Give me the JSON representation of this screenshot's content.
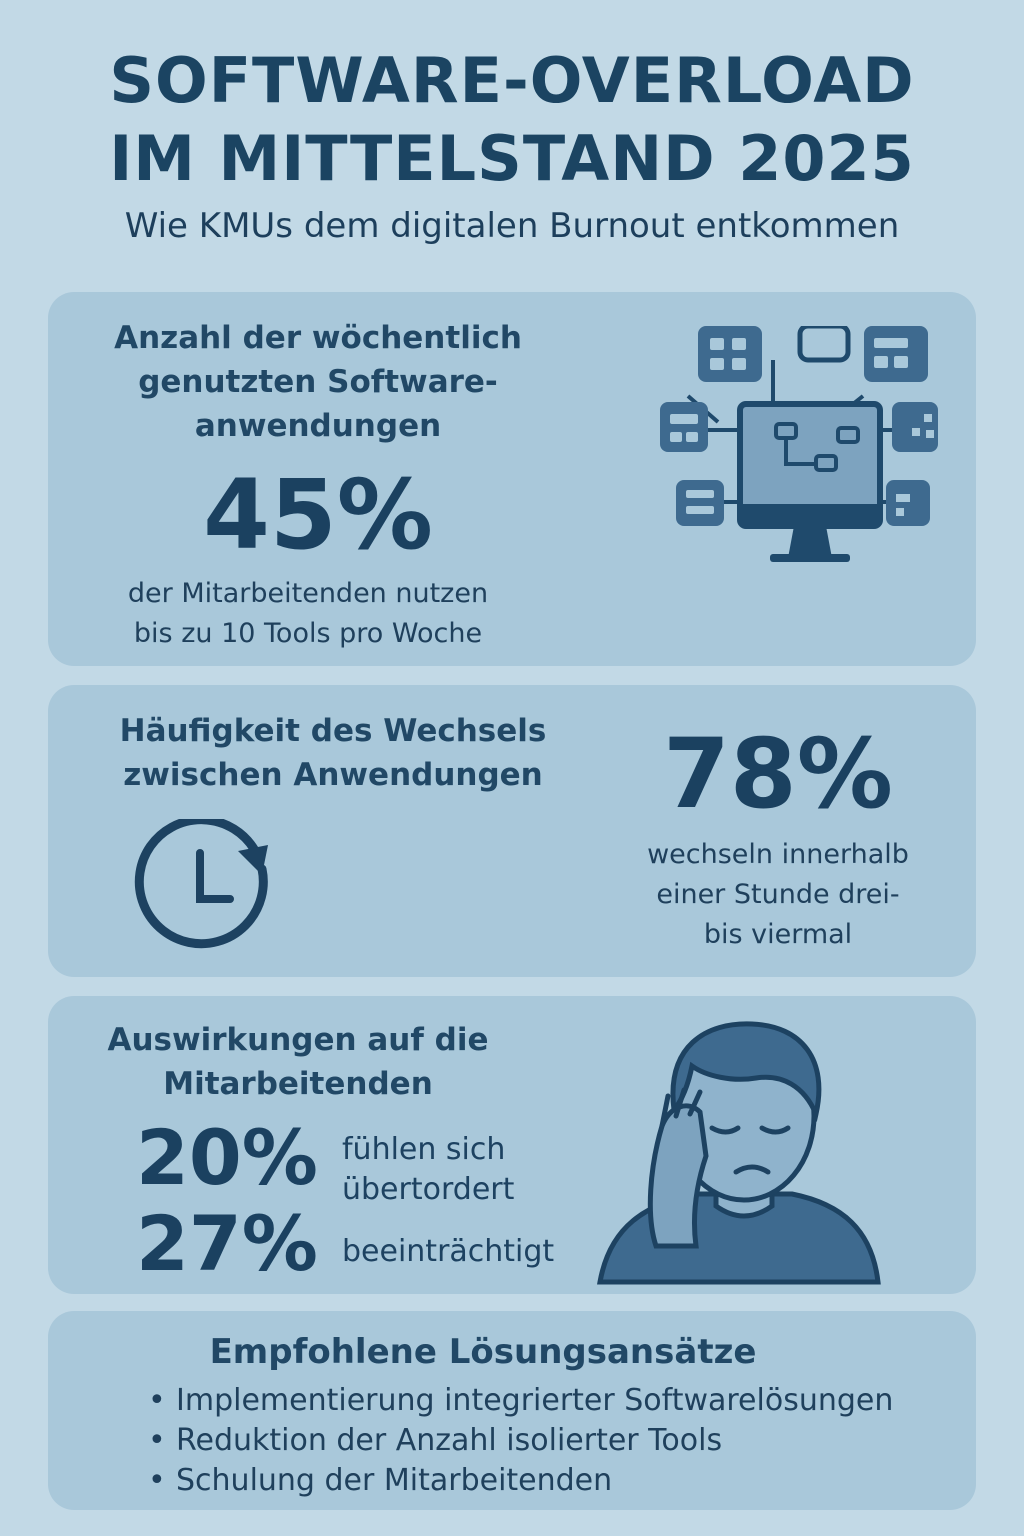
{
  "header": {
    "title_line1": "SOFTWARE-OVERLOAD",
    "title_line2": "IM MITTELSTAND 2025",
    "subtitle": "Wie KMUs dem digitalen Burnout entkommen"
  },
  "section1": {
    "heading_line1": "Anzahl der wöchentlich",
    "heading_line2": "genutzten Software-",
    "heading_line3": "anwendungen",
    "value": "45%",
    "desc_line1": "der Mitarbeitenden nutzen",
    "desc_line2": "bis zu 10 Tools pro Woche",
    "icon": "computer-network-icon"
  },
  "section2": {
    "heading_line1": "Häufigkeit des Wechsels",
    "heading_line2": "zwischen Anwendungen",
    "icon": "clock-refresh-icon",
    "value": "78%",
    "desc_line1": "wechseln innerhalb",
    "desc_line2": "einer Stunde drei-",
    "desc_line3": "bis viermal"
  },
  "section3": {
    "heading_line1": "Auswirkungen auf die",
    "heading_line2": "Mitarbeitenden",
    "stat1_value": "20%",
    "stat1_line1": "fühlen sich",
    "stat1_line2": "übertordert",
    "stat2_value": "27%",
    "stat2_text": "beeinträchtigt",
    "icon": "stressed-person-icon"
  },
  "section4": {
    "heading": "Empfohlene Lösungsansätze",
    "items": [
      "Implementierung integrierter Softwarelösungen",
      "Reduktion der Anzahl isolierter Tools",
      "Schulung der Mitarbeitenden"
    ]
  },
  "colors": {
    "background": "#c2d9e6",
    "card": "#a9c8da",
    "text_dark": "#1b4462",
    "icon_fill": "#3e6a8f",
    "icon_dark": "#1d4261"
  }
}
